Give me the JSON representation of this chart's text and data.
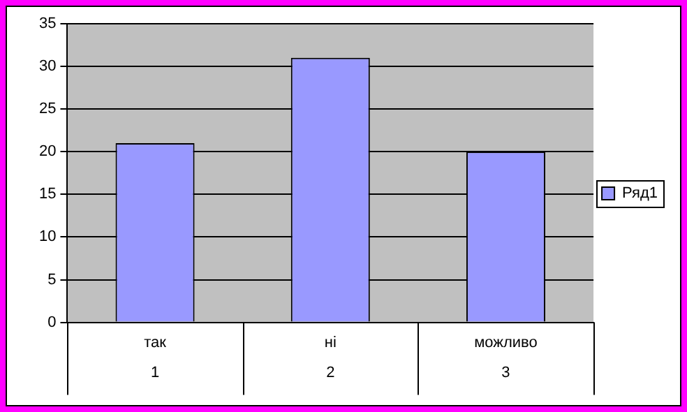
{
  "chart_data": {
    "type": "bar",
    "categories": [
      "так",
      "ні",
      "можливо"
    ],
    "series": [
      {
        "name": "Ряд1",
        "color": "#9999ff",
        "values": [
          21,
          31,
          20
        ]
      }
    ],
    "ylim": [
      0,
      35
    ],
    "yticks": [
      0,
      5,
      10,
      15,
      20,
      25,
      30,
      35
    ],
    "grid": "y",
    "legend": "right",
    "annotations": [
      "1",
      "2",
      "3"
    ]
  }
}
